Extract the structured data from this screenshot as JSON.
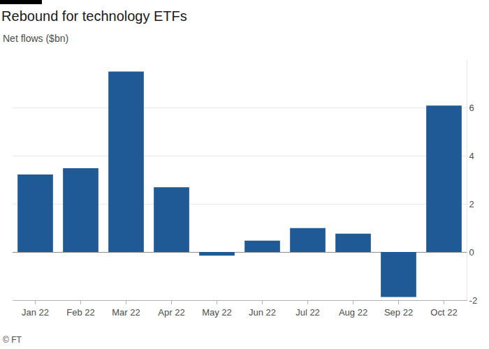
{
  "chart_data": {
    "type": "bar",
    "title": "Rebound for technology ETFs",
    "subtitle": "Net flows ($bn)",
    "source": "© FT",
    "categories": [
      "Jan 22",
      "Feb 22",
      "Mar 22",
      "Apr 22",
      "May 22",
      "Jun 22",
      "Jul 22",
      "Aug 22",
      "Sep 22",
      "Oct 22"
    ],
    "values": [
      3.22,
      3.48,
      7.49,
      2.69,
      -0.15,
      0.47,
      0.99,
      0.76,
      -1.87,
      6.08
    ],
    "color": "#1f5a96",
    "ylim": [
      -2,
      8
    ],
    "yticks": [
      -2,
      0,
      2,
      4,
      6
    ],
    "grid": true
  }
}
